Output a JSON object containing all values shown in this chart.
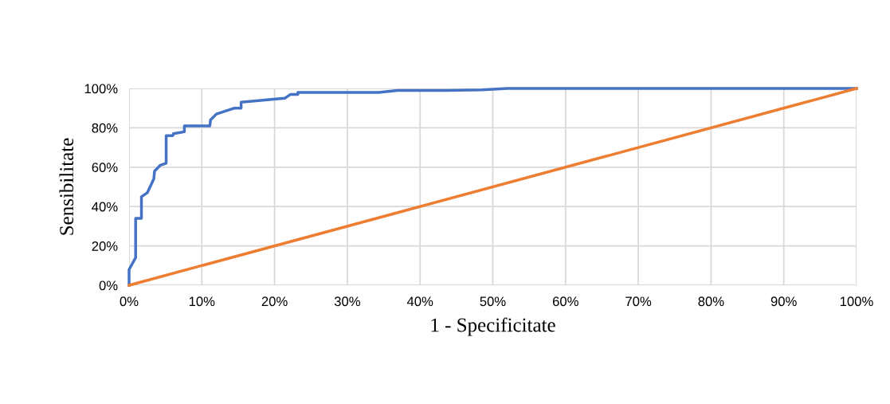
{
  "chart_data": {
    "type": "line",
    "xlabel": "1 - Specificitate",
    "ylabel": "Sensibilitate",
    "xlim": [
      0,
      100
    ],
    "ylim": [
      0,
      100
    ],
    "xticks": [
      {
        "value": 0,
        "label": "0%"
      },
      {
        "value": 10,
        "label": "10%"
      },
      {
        "value": 20,
        "label": "20%"
      },
      {
        "value": 30,
        "label": "30%"
      },
      {
        "value": 40,
        "label": "40%"
      },
      {
        "value": 50,
        "label": "50%"
      },
      {
        "value": 60,
        "label": "60%"
      },
      {
        "value": 70,
        "label": "70%"
      },
      {
        "value": 80,
        "label": "80%"
      },
      {
        "value": 90,
        "label": "90%"
      },
      {
        "value": 100,
        "label": "100%"
      }
    ],
    "yticks": [
      {
        "value": 0,
        "label": "0%"
      },
      {
        "value": 20,
        "label": "20%"
      },
      {
        "value": 40,
        "label": "40%"
      },
      {
        "value": 60,
        "label": "60%"
      },
      {
        "value": 80,
        "label": "80%"
      },
      {
        "value": 100,
        "label": "100%"
      }
    ],
    "grid": true,
    "legend": false,
    "marker": "none",
    "line_style": "solid",
    "series": [
      {
        "color": "#4472c4",
        "x": [
          0,
          0,
          0.9,
          0.9,
          1.7,
          1.7,
          2.5,
          3.4,
          3.5,
          4.3,
          5.1,
          5.1,
          6.0,
          6.1,
          7.6,
          7.6,
          11.1,
          11.2,
          12.0,
          14.5,
          15.4,
          15.4,
          21.4,
          22.2,
          23.2,
          23.2,
          34.3,
          36.9,
          43.5,
          48.5,
          52,
          100
        ],
        "values": [
          0,
          8,
          14,
          34,
          34,
          45,
          47,
          54,
          58,
          61,
          62,
          76,
          76,
          77,
          78,
          81,
          81,
          84,
          87,
          90,
          90,
          93,
          95,
          97,
          97,
          98,
          98,
          99,
          99,
          99.3,
          100,
          100
        ]
      },
      {
        "color": "#ed7d31",
        "x": [
          0,
          100
        ],
        "values": [
          0,
          100
        ]
      }
    ]
  }
}
